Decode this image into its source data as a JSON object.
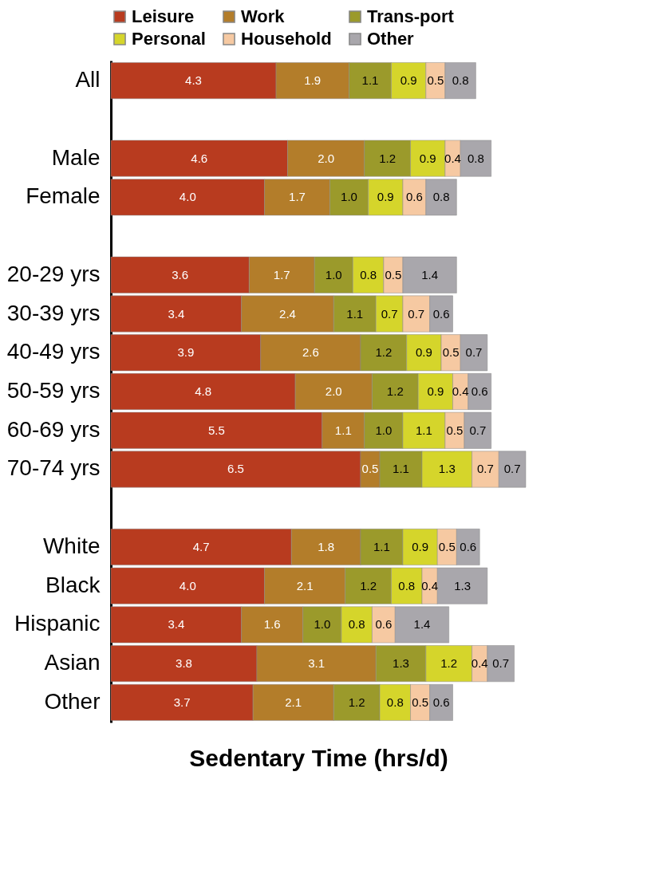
{
  "chart_data": {
    "type": "bar",
    "orientation": "horizontal",
    "stacked": true,
    "legend": "top",
    "tick_labels": "y",
    "xlabel": "Sedentary Time (hrs/d)",
    "categories": [
      "All",
      null,
      "Male",
      "Female",
      null,
      "20-29 yrs",
      "30-39 yrs",
      "40-49 yrs",
      "50-59 yrs",
      "60-69 yrs",
      "70-74 yrs",
      null,
      "White",
      "Black",
      "Hispanic",
      "Asian",
      "Other"
    ],
    "series": [
      {
        "name": "Leisure",
        "color": "#b83b1f",
        "values": [
          4.3,
          null,
          4.6,
          4.0,
          null,
          3.6,
          3.4,
          3.9,
          4.8,
          5.5,
          6.5,
          null,
          4.7,
          4.0,
          3.4,
          3.8,
          3.7
        ],
        "value_labels": [
          "4.3",
          null,
          "4.6",
          "4.0",
          null,
          "3.6",
          "3.4",
          "3.9",
          "4.8",
          "5.5",
          "6.5",
          null,
          "4.7",
          "4.0",
          "3.4",
          "3.8",
          "3.7"
        ]
      },
      {
        "name": "Work",
        "color": "#b37d2a",
        "values": [
          1.9,
          null,
          2.0,
          1.7,
          null,
          1.7,
          2.4,
          2.6,
          2.0,
          1.1,
          0.5,
          null,
          1.8,
          2.1,
          1.6,
          3.1,
          2.1
        ],
        "value_labels": [
          "1.9",
          null,
          "2.0",
          "1.7",
          null,
          "1.7",
          "2.4",
          "2.6",
          "2.0",
          "1.1",
          "0.5",
          null,
          "1.8",
          "2.1",
          "1.6",
          "3.1",
          "2.1"
        ]
      },
      {
        "name": "Trans-port",
        "color": "#9b9a2b",
        "values": [
          1.1,
          null,
          1.2,
          1.0,
          null,
          1.0,
          1.1,
          1.2,
          1.2,
          1.0,
          1.1,
          null,
          1.1,
          1.2,
          1.0,
          1.3,
          1.2
        ],
        "value_labels": [
          "1.1",
          null,
          "1.2",
          "1.0",
          null,
          "1.0",
          "1.1",
          "1.2",
          "1.2",
          "1.0",
          "1.1",
          null,
          "1.1",
          "1.2",
          "1.0",
          "1.3",
          "1.2"
        ]
      },
      {
        "name": "Personal",
        "color": "#d5d52b",
        "values": [
          0.9,
          null,
          0.9,
          0.9,
          null,
          0.8,
          0.7,
          0.9,
          0.9,
          1.1,
          1.3,
          null,
          0.9,
          0.8,
          0.8,
          1.2,
          0.8
        ],
        "value_labels": [
          "0.9",
          null,
          "0.9",
          "0.9",
          null,
          "0.8",
          "0.7",
          "0.9",
          "0.9",
          "1.1",
          "1.3",
          null,
          "0.9",
          "0.8",
          "0.8",
          "1.2",
          "0.8"
        ]
      },
      {
        "name": "Household",
        "color": "#f6c9a2",
        "values": [
          0.5,
          null,
          0.4,
          0.6,
          null,
          0.5,
          0.7,
          0.5,
          0.4,
          0.5,
          0.7,
          null,
          0.5,
          0.4,
          0.6,
          0.4,
          0.5
        ],
        "value_labels": [
          "0.5",
          null,
          "0.4",
          "0.6",
          null,
          "0.5",
          "0.7",
          "0.5",
          "0.4",
          "0.5",
          "0.7",
          null,
          "0.5",
          "0.4",
          "0.6",
          "0.4",
          "0.5"
        ]
      },
      {
        "name": "Other",
        "color": "#a9a7ac",
        "values": [
          0.8,
          null,
          0.8,
          0.8,
          null,
          1.4,
          0.6,
          0.7,
          0.6,
          0.7,
          0.7,
          null,
          0.6,
          1.3,
          1.4,
          0.7,
          0.6
        ],
        "value_labels": [
          "0.8",
          null,
          "0.8",
          "0.8",
          null,
          "1.4",
          "0.6",
          "0.7",
          "0.6",
          "0.7",
          "0.7",
          null,
          "0.6",
          "1.3",
          "1.4",
          "0.7",
          "0.6"
        ]
      }
    ]
  }
}
